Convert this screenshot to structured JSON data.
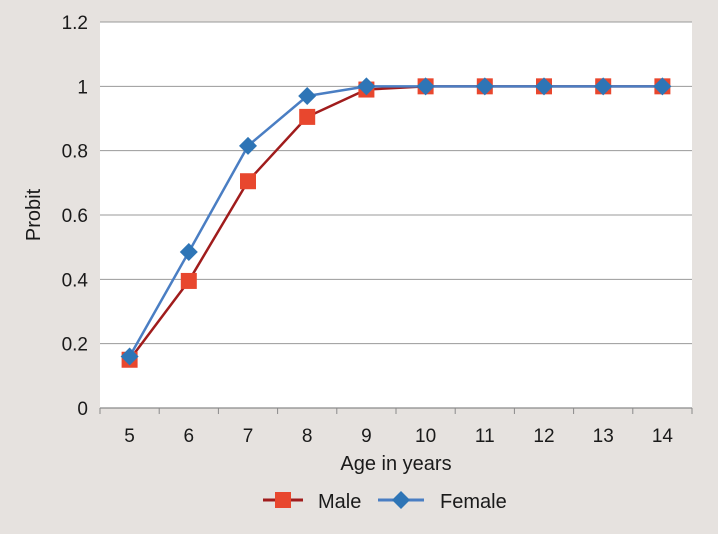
{
  "chart_data": {
    "type": "line",
    "title": "",
    "xlabel": "Age in years",
    "ylabel": "Probit",
    "categories": [
      "5",
      "6",
      "7",
      "8",
      "9",
      "10",
      "11",
      "12",
      "13",
      "14"
    ],
    "x": [
      5,
      6,
      7,
      8,
      9,
      10,
      11,
      12,
      13,
      14
    ],
    "ylim": [
      0,
      1.2
    ],
    "yticks": [
      "0",
      "0.2",
      "0.4",
      "0.6",
      "0.8",
      "1",
      "1.2"
    ],
    "ytick_values": [
      0,
      0.2,
      0.4,
      0.6,
      0.8,
      1.0,
      1.2
    ],
    "grid": "horizontal",
    "legend_position": "bottom",
    "series": [
      {
        "name": "Male",
        "color": "#e8472e",
        "line_color": "#a01c1c",
        "marker": "square",
        "values": [
          0.15,
          0.395,
          0.705,
          0.905,
          0.99,
          1.0,
          1.0,
          1.0,
          1.0,
          1.0
        ]
      },
      {
        "name": "Female",
        "color": "#2e75b6",
        "line_color": "#4a7ec3",
        "marker": "diamond",
        "values": [
          0.16,
          0.485,
          0.815,
          0.97,
          1.0,
          1.0,
          1.0,
          1.0,
          1.0,
          1.0
        ]
      }
    ]
  }
}
